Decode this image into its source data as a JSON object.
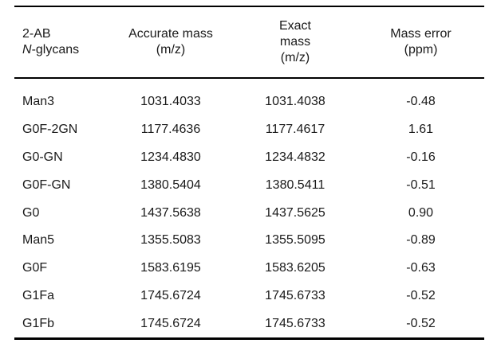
{
  "table": {
    "headers": [
      {
        "lines": [
          "2-AB",
          "N-glycans"
        ]
      },
      {
        "lines": [
          "Accurate mass",
          "(m/z)"
        ]
      },
      {
        "lines": [
          "Exact",
          "mass",
          "(m/z)"
        ]
      },
      {
        "lines": [
          "Mass error",
          "(ppm)"
        ]
      }
    ],
    "header_glycan_italic": "N",
    "header_glycan_rest": "-glycans",
    "rows": [
      {
        "glycan": "Man3",
        "accurate": "1031.4033",
        "exact": "1031.4038",
        "error": "-0.48"
      },
      {
        "glycan": "G0F-2GN",
        "accurate": "1177.4636",
        "exact": "1177.4617",
        "error": "1.61"
      },
      {
        "glycan": "G0-GN",
        "accurate": "1234.4830",
        "exact": "1234.4832",
        "error": "-0.16"
      },
      {
        "glycan": "G0F-GN",
        "accurate": "1380.5404",
        "exact": "1380.5411",
        "error": "-0.51"
      },
      {
        "glycan": "G0",
        "accurate": "1437.5638",
        "exact": "1437.5625",
        "error": "0.90"
      },
      {
        "glycan": "Man5",
        "accurate": "1355.5083",
        "exact": "1355.5095",
        "error": "-0.89"
      },
      {
        "glycan": "G0F",
        "accurate": "1583.6195",
        "exact": "1583.6205",
        "error": "-0.63"
      },
      {
        "glycan": "G1Fa",
        "accurate": "1745.6724",
        "exact": "1745.6733",
        "error": "-0.52"
      },
      {
        "glycan": "G1Fb",
        "accurate": "1745.6724",
        "exact": "1745.6733",
        "error": "-0.52"
      }
    ]
  }
}
